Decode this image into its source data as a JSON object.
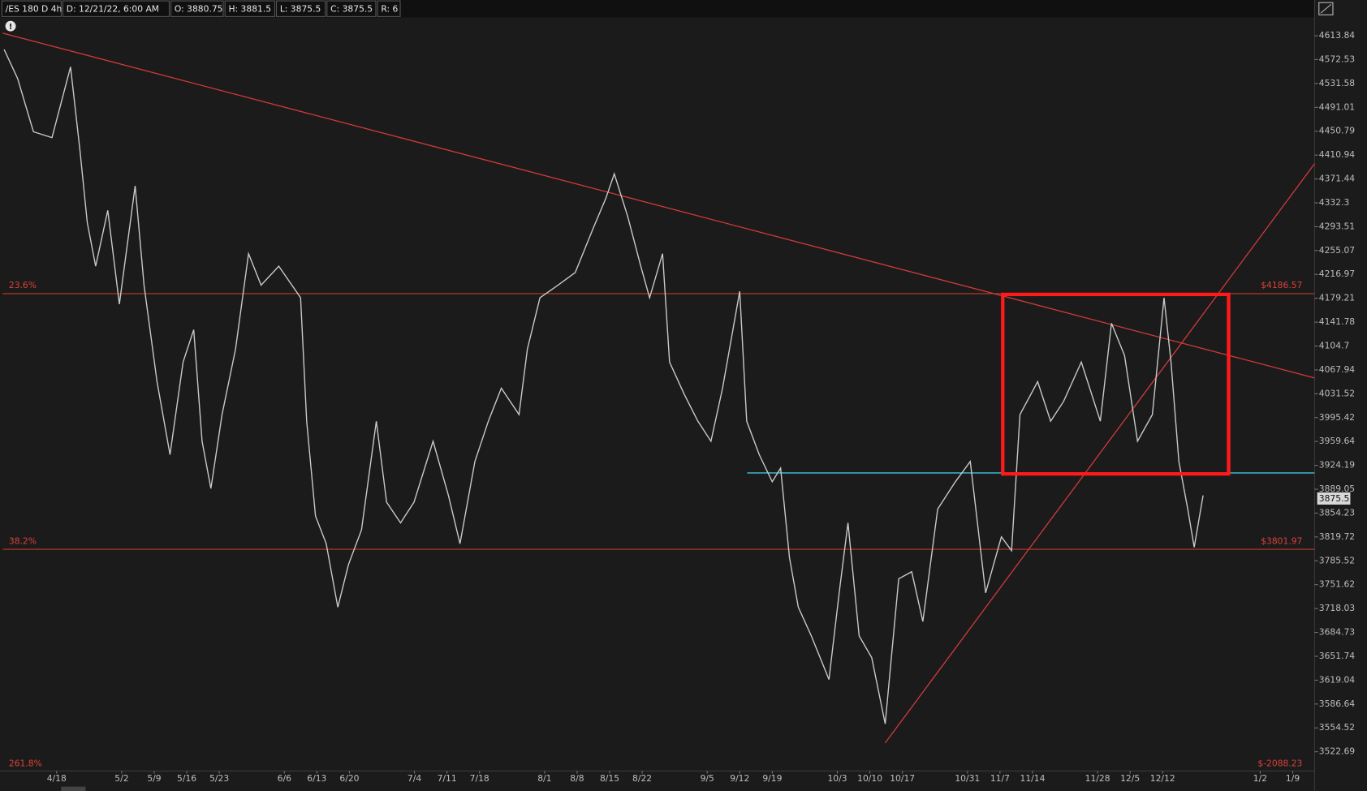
{
  "chart_data": {
    "type": "line",
    "symbol": "/ES 180 D 4h",
    "header_fields": [
      "D: 12/21/22, 6:00 AM",
      "O: 3880.75",
      "H: 3881.5",
      "L: 3875.5",
      "C: 3875.5",
      "R: 6"
    ],
    "log_scale": true,
    "ylim": [
      3497.3,
      4645.8
    ],
    "yticks": [
      4613.84,
      4572.53,
      4531.58,
      4491.01,
      4450.79,
      4410.94,
      4371.44,
      4332.3,
      4293.51,
      4255.07,
      4216.97,
      4179.21,
      4141.78,
      4104.7,
      4067.94,
      4031.52,
      3995.42,
      3959.64,
      3924.19,
      3889.05,
      3854.23,
      3819.72,
      3785.52,
      3751.62,
      3718.03,
      3684.73,
      3651.74,
      3619.04,
      3586.64,
      3554.52,
      3522.69
    ],
    "xlim": [
      96.4,
      378.7
    ],
    "xticks": [
      {
        "value": 108,
        "label": "4/18"
      },
      {
        "value": 122,
        "label": "5/2"
      },
      {
        "value": 129,
        "label": "5/9"
      },
      {
        "value": 136,
        "label": "5/16"
      },
      {
        "value": 143,
        "label": "5/23"
      },
      {
        "value": 157,
        "label": "6/6"
      },
      {
        "value": 164,
        "label": "6/13"
      },
      {
        "value": 171,
        "label": "6/20"
      },
      {
        "value": 185,
        "label": "7/4"
      },
      {
        "value": 192,
        "label": "7/11"
      },
      {
        "value": 199,
        "label": "7/18"
      },
      {
        "value": 213,
        "label": "8/1"
      },
      {
        "value": 220,
        "label": "8/8"
      },
      {
        "value": 227,
        "label": "8/15"
      },
      {
        "value": 234,
        "label": "8/22"
      },
      {
        "value": 248,
        "label": "9/5"
      },
      {
        "value": 255,
        "label": "9/12"
      },
      {
        "value": 262,
        "label": "9/19"
      },
      {
        "value": 276,
        "label": "10/3"
      },
      {
        "value": 283,
        "label": "10/10"
      },
      {
        "value": 290,
        "label": "10/17"
      },
      {
        "value": 304,
        "label": "10/31"
      },
      {
        "value": 311,
        "label": "11/7"
      },
      {
        "value": 318,
        "label": "11/14"
      },
      {
        "value": 332,
        "label": "11/28"
      },
      {
        "value": 339,
        "label": "12/5"
      },
      {
        "value": 346,
        "label": "12/12"
      },
      {
        "value": 367,
        "label": "1/2"
      },
      {
        "value": 374,
        "label": "1/9"
      }
    ],
    "series": [
      {
        "color": "#c9c9c9",
        "x": [
          96.7,
          99.6,
          103,
          107,
          111,
          113,
          114.6,
          116.4,
          119,
          121.5,
          124.9,
          126.8,
          129.6,
          132.4,
          135.2,
          137.5,
          139.3,
          141.2,
          143.6,
          146.5,
          149.3,
          152,
          155.8,
          160.5,
          161.8,
          163.7,
          166,
          168.5,
          170.8,
          173.6,
          176.8,
          179,
          182,
          184.9,
          189,
          192.3,
          194.8,
          198,
          200.9,
          203.7,
          207.5,
          209.3,
          212,
          215.9,
          219.6,
          223.4,
          226.2,
          228,
          230.9,
          233.7,
          235.6,
          238.4,
          239.9,
          243.1,
          246,
          248.8,
          251.3,
          255,
          256.5,
          259.2,
          262,
          263.8,
          265.7,
          267.6,
          270.4,
          274.2,
          276.4,
          278.3,
          280.7,
          283.4,
          286.3,
          289.2,
          292,
          294.4,
          297.6,
          301.4,
          304.6,
          307.9,
          311.3,
          313.5,
          315.3,
          319.1,
          321.9,
          324.7,
          328.5,
          332.6,
          335,
          337.8,
          340.6,
          343.8,
          346.3,
          347.8,
          349.5,
          351.4,
          352.8,
          354.7
        ],
        "values": [
          4590,
          4540,
          4450,
          4440,
          4560,
          4420,
          4300,
          4230,
          4320,
          4170,
          4360,
          4200,
          4050,
          3940,
          4080,
          4130,
          3960,
          3890,
          4000,
          4100,
          4250,
          4200,
          4230,
          4180,
          3990,
          3850,
          3810,
          3720,
          3780,
          3830,
          3990,
          3870,
          3840,
          3870,
          3960,
          3880,
          3810,
          3930,
          3990,
          4040,
          4000,
          4100,
          4180,
          4200,
          4220,
          4290,
          4340,
          4380,
          4310,
          4230,
          4180,
          4250,
          4080,
          4030,
          3990,
          3960,
          4040,
          4190,
          3990,
          3940,
          3900,
          3920,
          3790,
          3720,
          3680,
          3620,
          3740,
          3840,
          3680,
          3650,
          3560,
          3760,
          3770,
          3700,
          3860,
          3900,
          3930,
          3740,
          3820,
          3800,
          4000,
          4050,
          3990,
          4020,
          4080,
          3990,
          4140,
          4090,
          3960,
          4000,
          4180,
          4080,
          3930,
          3860,
          3805,
          3880
        ]
      }
    ],
    "last_price": {
      "value": 3875.5,
      "label": "3875.5"
    },
    "fib_levels": [
      {
        "percent": "23.6%",
        "value": 4186.57,
        "label": "$4186.57"
      },
      {
        "percent": "38.2%",
        "value": 3801.97,
        "label": "$3801.97"
      }
    ],
    "fib_bottom": {
      "percent": "261.8%",
      "label": "$-2088.23"
    },
    "trendlines": [
      {
        "x": [
          96.4,
          378.7
        ],
        "values": [
          4618.4,
          4055.6
        ],
        "color": "#d23a3a"
      },
      {
        "x": [
          286.3,
          378.7
        ],
        "values": [
          3534.4,
          4396.7
        ],
        "color": "#d23a3a"
      },
      {
        "x": [
          256.6,
          378.7
        ],
        "values": [
          3913,
          3913
        ],
        "color": "#3cc6d8"
      }
    ],
    "box": {
      "x": [
        311.6,
        360.2
      ],
      "values": [
        4185.3,
        3911.6
      ],
      "color": "#ff1a1a"
    }
  }
}
